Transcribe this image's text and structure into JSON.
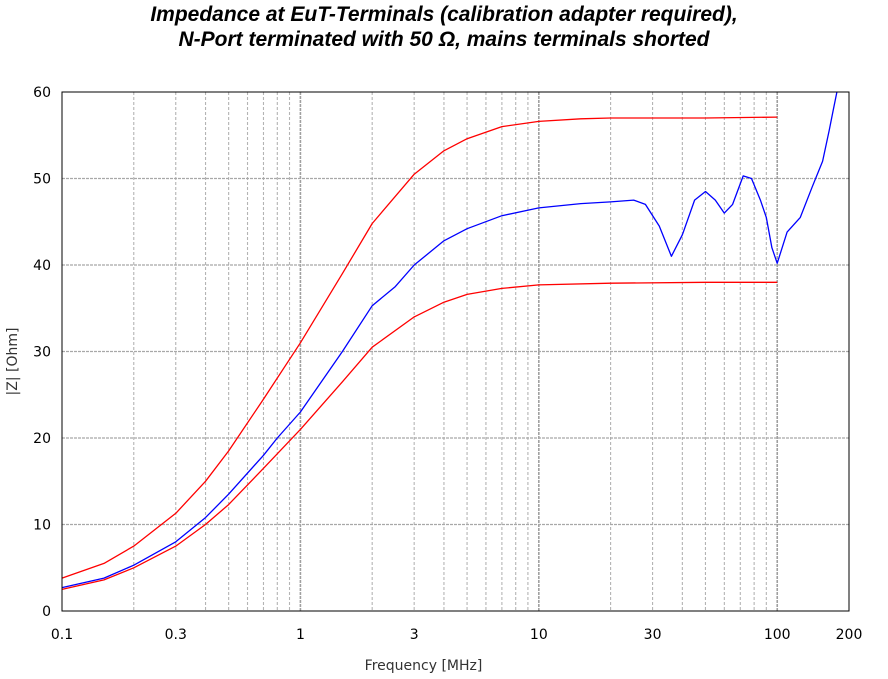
{
  "chart_data": {
    "type": "line",
    "title_line1": "Impedance at EuT-Terminals (calibration adapter required),",
    "title_line2": "N-Port terminated with 50 Ω, mains terminals shorted",
    "xlabel": "Frequency [MHz]",
    "ylabel": "|Z| [Ohm]",
    "x_scale": "log",
    "xlim": [
      0.1,
      200
    ],
    "ylim": [
      0,
      60
    ],
    "x_ticks": [
      0.1,
      0.3,
      1,
      3,
      10,
      30,
      100,
      200
    ],
    "x_tick_labels": [
      "0.1",
      "0.3",
      "1",
      "3",
      "10",
      "30",
      "100",
      "200"
    ],
    "y_ticks": [
      0,
      10,
      20,
      30,
      40,
      50,
      60
    ],
    "y_tick_labels": [
      "0",
      "10",
      "20",
      "30",
      "40",
      "50",
      "60"
    ],
    "grid": true,
    "series": [
      {
        "color": "#ff0000",
        "points": [
          [
            0.1,
            3.8
          ],
          [
            0.15,
            5.5
          ],
          [
            0.2,
            7.5
          ],
          [
            0.3,
            11.3
          ],
          [
            0.4,
            15.0
          ],
          [
            0.5,
            18.5
          ],
          [
            0.7,
            24.5
          ],
          [
            1.0,
            31.0
          ],
          [
            1.5,
            39.0
          ],
          [
            2.0,
            44.8
          ],
          [
            3.0,
            50.5
          ],
          [
            4.0,
            53.2
          ],
          [
            5.0,
            54.6
          ],
          [
            7.0,
            56.0
          ],
          [
            10.0,
            56.6
          ],
          [
            15.0,
            56.9
          ],
          [
            20.0,
            57.0
          ],
          [
            50.0,
            57.0
          ],
          [
            100.0,
            57.1
          ]
        ]
      },
      {
        "color": "#ff0000",
        "points": [
          [
            0.1,
            2.5
          ],
          [
            0.15,
            3.6
          ],
          [
            0.2,
            5.0
          ],
          [
            0.3,
            7.5
          ],
          [
            0.4,
            10.0
          ],
          [
            0.5,
            12.3
          ],
          [
            0.7,
            16.5
          ],
          [
            1.0,
            21.0
          ],
          [
            1.5,
            26.5
          ],
          [
            2.0,
            30.5
          ],
          [
            3.0,
            34.0
          ],
          [
            4.0,
            35.7
          ],
          [
            5.0,
            36.6
          ],
          [
            7.0,
            37.3
          ],
          [
            10.0,
            37.7
          ],
          [
            20.0,
            37.9
          ],
          [
            50.0,
            38.0
          ],
          [
            100.0,
            38.0
          ]
        ]
      },
      {
        "color": "#0000ff",
        "points": [
          [
            0.1,
            2.7
          ],
          [
            0.15,
            3.8
          ],
          [
            0.2,
            5.3
          ],
          [
            0.3,
            8.0
          ],
          [
            0.4,
            10.8
          ],
          [
            0.5,
            13.5
          ],
          [
            0.7,
            18.0
          ],
          [
            0.8,
            20.0
          ],
          [
            1.0,
            23.0
          ],
          [
            1.5,
            30.0
          ],
          [
            2.0,
            35.3
          ],
          [
            2.5,
            37.5
          ],
          [
            3.0,
            40.0
          ],
          [
            4.0,
            42.8
          ],
          [
            5.0,
            44.2
          ],
          [
            7.0,
            45.7
          ],
          [
            10.0,
            46.6
          ],
          [
            15.0,
            47.1
          ],
          [
            20.0,
            47.3
          ],
          [
            25.0,
            47.5
          ],
          [
            28.0,
            47.0
          ],
          [
            32.0,
            44.5
          ],
          [
            36.0,
            41.0
          ],
          [
            40.0,
            43.5
          ],
          [
            45.0,
            47.5
          ],
          [
            50.0,
            48.5
          ],
          [
            55.0,
            47.5
          ],
          [
            60.0,
            46.0
          ],
          [
            65.0,
            47.0
          ],
          [
            72.0,
            50.3
          ],
          [
            78.0,
            50.0
          ],
          [
            85.0,
            47.5
          ],
          [
            90.0,
            45.5
          ],
          [
            95.0,
            42.0
          ],
          [
            100.0,
            40.2
          ],
          [
            110.0,
            43.8
          ],
          [
            125.0,
            45.5
          ],
          [
            140.0,
            49.0
          ],
          [
            155.0,
            52.0
          ],
          [
            165.0,
            55.5
          ],
          [
            172.0,
            58.0
          ],
          [
            178.0,
            60.0
          ]
        ]
      }
    ]
  }
}
